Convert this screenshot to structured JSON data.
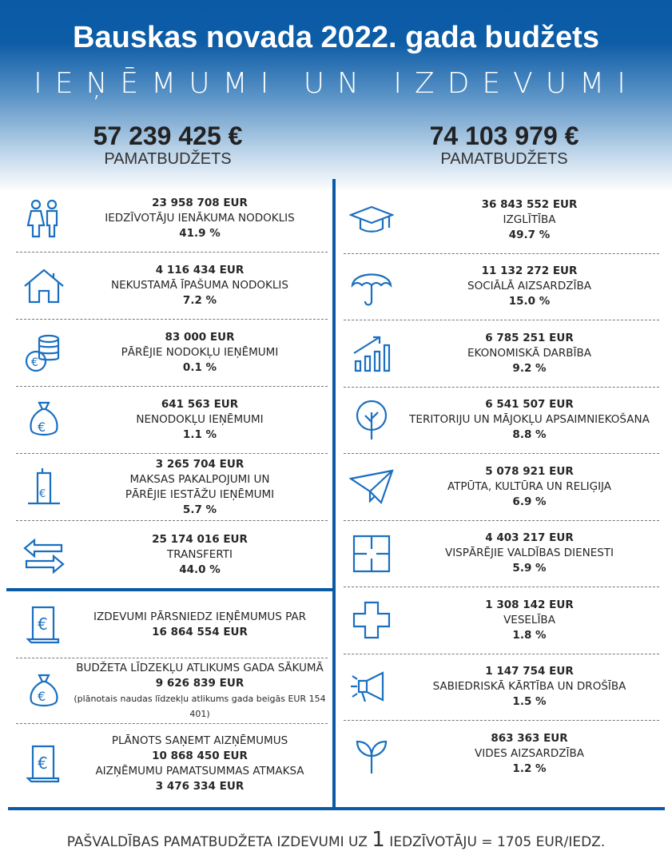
{
  "header": {
    "title": "Bauskas novada 2022. gada budžets",
    "subtitle": "IEŅĒMUMI UN IZDEVUMI"
  },
  "revenue": {
    "total": "57 239 425 €",
    "label": "PAMATBUDŽETS"
  },
  "expenses": {
    "total": "74 103 979 €",
    "label": "PAMATBUDŽETS"
  },
  "colors": {
    "accent": "#0a5aa6",
    "icon": "#1a6fc0"
  },
  "revenue_items": [
    {
      "icon": "people-icon",
      "amount": "23 958 708 EUR",
      "label": "IEDZĪVOTĀJU IENĀKUMA NODOKLIS",
      "percent": "41.9 %"
    },
    {
      "icon": "house-icon",
      "amount": "4 116 434 EUR",
      "label": "NEKUSTAMĀ ĪPAŠUMA NODOKLIS",
      "percent": "7.2 %"
    },
    {
      "icon": "coins-icon",
      "amount": "83 000 EUR",
      "label": "PĀRĒJIE NODOKĻU IEŅĒMUMI",
      "percent": "0.1 %"
    },
    {
      "icon": "money-bag-icon",
      "amount": "641 563 EUR",
      "label": "NENODOKĻU IEŅĒMUMI",
      "percent": "1.1 %"
    },
    {
      "icon": "building-icon",
      "amount": "3 265 704 EUR",
      "label": "MAKSAS PAKALPOJUMI UN",
      "label2": "PĀRĒJIE IESTĀŽU IEŅĒMUMI",
      "percent": "5.7 %"
    },
    {
      "icon": "transfer-arrows-icon",
      "amount": "25 174 016 EUR",
      "label": "TRANSFERTI",
      "percent": "44.0 %"
    }
  ],
  "summary": {
    "deficit_label": "IZDEVUMI PĀRSNIEDZ IEŅĒMUMUS PAR",
    "deficit_amount": "16 864 554 EUR",
    "balance_label": "BUDŽETA LĪDZEKĻU ATLIKUMS GADA SĀKUMĀ",
    "balance_amount": "9 626 839 EUR",
    "balance_note": "(plānotais naudas līdzekļu atlikums gada beigās EUR 154 401)",
    "loan_label": "PLĀNOTS SAŅEMT AIZŅĒMUMUS",
    "loan_amount": "10 868 450 EUR",
    "repay_label": "AIZŅĒMUMU PAMATSUMMAS ATMAKSA",
    "repay_amount": "3 476 334 EUR"
  },
  "expense_items": [
    {
      "icon": "graduation-cap-icon",
      "amount": "36 843 552 EUR",
      "label": "IZGLĪTĪBA",
      "percent": "49.7 %"
    },
    {
      "icon": "umbrella-icon",
      "amount": "11 132 272 EUR",
      "label": "SOCIĀLĀ AIZSARDZĪBA",
      "percent": "15.0 %"
    },
    {
      "icon": "growth-chart-icon",
      "amount": "6 785 251 EUR",
      "label": "EKONOMISKĀ DARBĪBA",
      "percent": "9.2 %"
    },
    {
      "icon": "tree-icon",
      "amount": "6 541 507 EUR",
      "label": "TERITORIJU UN MĀJOKĻU APSAIMNIEKOŠANA",
      "percent": "8.8 %"
    },
    {
      "icon": "paper-plane-icon",
      "amount": "5 078 921 EUR",
      "label": "ATPŪTA, KULTŪRA UN RELIĢIJA",
      "percent": "6.9 %"
    },
    {
      "icon": "puzzle-icon",
      "amount": "4 403 217 EUR",
      "label": "VISPĀRĒJIE VALDĪBAS DIENESTI",
      "percent": "5.9 %"
    },
    {
      "icon": "medical-cross-icon",
      "amount": "1 308 142 EUR",
      "label": "VESELĪBA",
      "percent": "1.8 %"
    },
    {
      "icon": "megaphone-icon",
      "amount": "1 147 754 EUR",
      "label": "SABIEDRISKĀ KĀRTĪBA UN DROŠĪBA",
      "percent": "1.5 %"
    },
    {
      "icon": "sprout-icon",
      "amount": "863 363 EUR",
      "label": "VIDES AIZSARDZĪBA",
      "percent": "1.2 %"
    }
  ],
  "footer": {
    "pre": "PAŠVALDĪBAS PAMATBUDŽETA IZDEVUMI UZ ",
    "num": "1",
    "post": " IEDZĪVOTĀJU = 1705 EUR/IEDZ."
  }
}
